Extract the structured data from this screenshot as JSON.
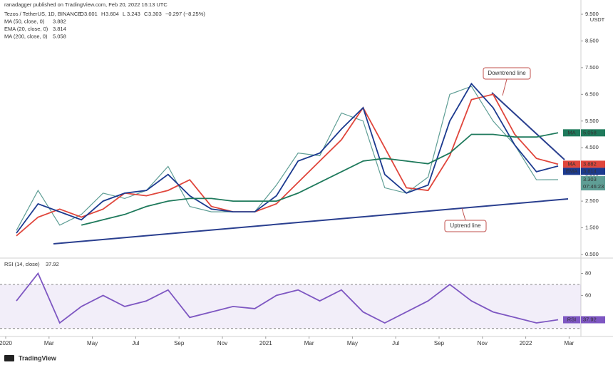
{
  "header": "ranadagger published on TradingView.com, Feb 20, 2022 16:13 UTC",
  "footer": "TradingView",
  "chart_data": [
    {
      "type": "line",
      "title": "Tezos / TetherUS, 1D, BINANCE",
      "ohlc": [
        {
          "label": "O",
          "value": 3.601
        },
        {
          "label": "H",
          "value": 3.604
        },
        {
          "label": "L",
          "value": 3.243
        },
        {
          "label": "C",
          "value": 3.303
        }
      ],
      "change": "−0.297 (−8.25%)",
      "currency": "USDT",
      "countdown": "07:46:23",
      "annotations": [
        "Downtrend line",
        "Uptrend line"
      ],
      "x": [
        "2020-01",
        "2020-02",
        "2020-03",
        "2020-04",
        "2020-05",
        "2020-06",
        "2020-07",
        "2020-08",
        "2020-09",
        "2020-10",
        "2020-11",
        "2020-12",
        "2021-01",
        "2021-02",
        "2021-03",
        "2021-04",
        "2021-05",
        "2021-06",
        "2021-07",
        "2021-08",
        "2021-09",
        "2021-10",
        "2021-11",
        "2021-12",
        "2022-01",
        "2022-02"
      ],
      "series": [
        {
          "color": "#5f9e95",
          "values": [
            1.4,
            2.9,
            1.6,
            2.0,
            2.8,
            2.6,
            2.9,
            3.8,
            2.3,
            2.1,
            2.1,
            2.1,
            3.1,
            4.3,
            4.2,
            5.8,
            5.5,
            3.0,
            2.8,
            3.4,
            6.5,
            6.8,
            5.5,
            4.6,
            3.3,
            3.303
          ]
        },
        {
          "name": "MA (50, close, 0)",
          "tag": "MA",
          "color": "#e0463c",
          "values": [
            1.2,
            1.9,
            2.2,
            1.9,
            2.2,
            2.8,
            2.7,
            2.9,
            3.3,
            2.3,
            2.1,
            2.1,
            2.4,
            3.2,
            4.0,
            4.8,
            6.0,
            4.5,
            3.0,
            2.9,
            4.2,
            6.3,
            6.5,
            5.0,
            4.1,
            3.882
          ]
        },
        {
          "name": "EMA (20, close, 0)",
          "tag": "EMA",
          "color": "#1c3a8f",
          "values": [
            1.3,
            2.4,
            2.1,
            1.8,
            2.5,
            2.8,
            2.9,
            3.5,
            2.7,
            2.2,
            2.1,
            2.1,
            2.7,
            4.0,
            4.3,
            5.2,
            6.0,
            3.5,
            2.8,
            3.1,
            5.5,
            6.9,
            6.0,
            4.6,
            3.6,
            3.814
          ]
        },
        {
          "name": "MA (200, close, 0)",
          "tag": "MA",
          "color": "#1f7a5c",
          "values": [
            null,
            null,
            null,
            1.6,
            1.8,
            2.0,
            2.3,
            2.5,
            2.6,
            2.6,
            2.5,
            2.5,
            2.5,
            2.8,
            3.2,
            3.6,
            4.0,
            4.1,
            4.0,
            3.9,
            4.3,
            5.0,
            5.0,
            4.9,
            4.9,
            5.058
          ]
        }
      ],
      "ylim": [
        0.5,
        9.5
      ],
      "yticks": [
        {
          "value": 0.5,
          "label": "0.500"
        },
        {
          "value": 1.5,
          "label": "1.500"
        },
        {
          "value": 2.5,
          "label": "2.500"
        },
        {
          "value": 3.5,
          "label": "3.500"
        },
        {
          "value": 4.5,
          "label": "4.500"
        },
        {
          "value": 5.5,
          "label": "5.500"
        },
        {
          "value": 6.5,
          "label": "6.500"
        },
        {
          "value": 7.5,
          "label": "7.500"
        },
        {
          "value": 8.5,
          "label": "8.500"
        },
        {
          "value": 9.5,
          "label": "9.500"
        }
      ],
      "xticks": [
        {
          "value": "2020-01",
          "label": "2020"
        },
        {
          "value": "2020-03",
          "label": "Mar"
        },
        {
          "value": "2020-05",
          "label": "May"
        },
        {
          "value": "2020-07",
          "label": "Jul"
        },
        {
          "value": "2020-09",
          "label": "Sep"
        },
        {
          "value": "2020-11",
          "label": "Nov"
        },
        {
          "value": "2021-01",
          "label": "2021"
        },
        {
          "value": "2021-03",
          "label": "Mar"
        },
        {
          "value": "2021-05",
          "label": "May"
        },
        {
          "value": "2021-07",
          "label": "Jul"
        },
        {
          "value": "2021-09",
          "label": "Sep"
        },
        {
          "value": "2021-11",
          "label": "Nov"
        },
        {
          "value": "2022-01",
          "label": "2022"
        },
        {
          "value": "2022-03",
          "label": "Mar"
        }
      ]
    },
    {
      "type": "line",
      "series": [
        {
          "name": "RSI (14, close)",
          "tag": "RSI",
          "color": "#7e57c2",
          "values": [
            55,
            80,
            35,
            50,
            60,
            50,
            55,
            65,
            40,
            45,
            50,
            48,
            60,
            65,
            55,
            65,
            45,
            35,
            45,
            55,
            70,
            55,
            45,
            40,
            35,
            37.92
          ]
        }
      ],
      "ylim": [
        24,
        92
      ],
      "yticks": [
        60,
        80
      ],
      "bands": [
        30,
        70
      ]
    }
  ]
}
